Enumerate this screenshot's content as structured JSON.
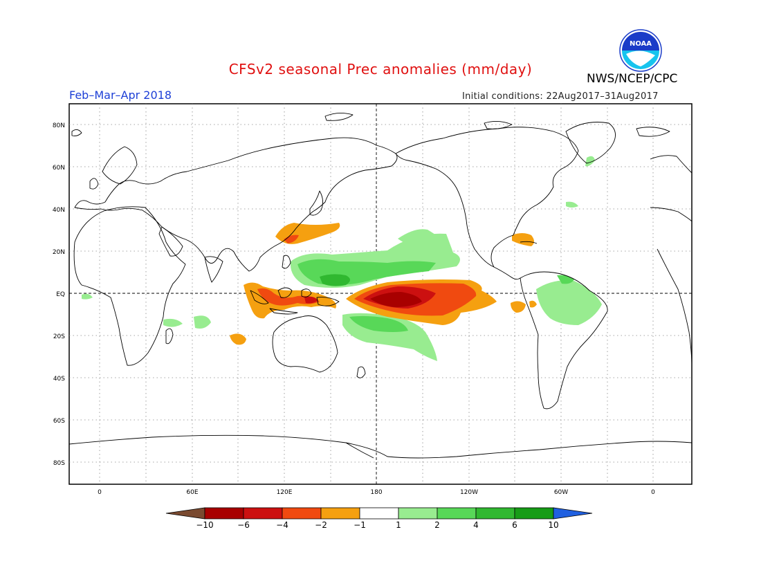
{
  "header": {
    "title": "CFSv2 seasonal Prec anomalies (mm/day)",
    "agency": "NWS/NCEP/CPC",
    "logo_text": "NOAA",
    "period": "Feb–Mar–Apr 2018",
    "initial_conditions": "Initial conditions: 22Aug2017–31Aug2017"
  },
  "axes": {
    "lat_labels": [
      "80N",
      "60N",
      "40N",
      "20N",
      "EQ",
      "20S",
      "40S",
      "60S",
      "80S"
    ],
    "lon_labels": [
      "0",
      "60E",
      "120E",
      "180",
      "120W",
      "60W",
      "0"
    ]
  },
  "colorbar": {
    "labels": [
      "-10",
      "-6",
      "-4",
      "-2",
      "-1",
      "1",
      "2",
      "4",
      "6",
      "10"
    ],
    "colors": [
      "#7a4a30",
      "#a80000",
      "#cc1010",
      "#f04a10",
      "#f5a010",
      "#ffffff",
      "#98ec90",
      "#58d858",
      "#30b830",
      "#179c17",
      "#2060e0"
    ]
  },
  "colors": {
    "title": "#e01010",
    "period": "#1d3fd6",
    "noaa_blue": "#1a3cc8"
  }
}
